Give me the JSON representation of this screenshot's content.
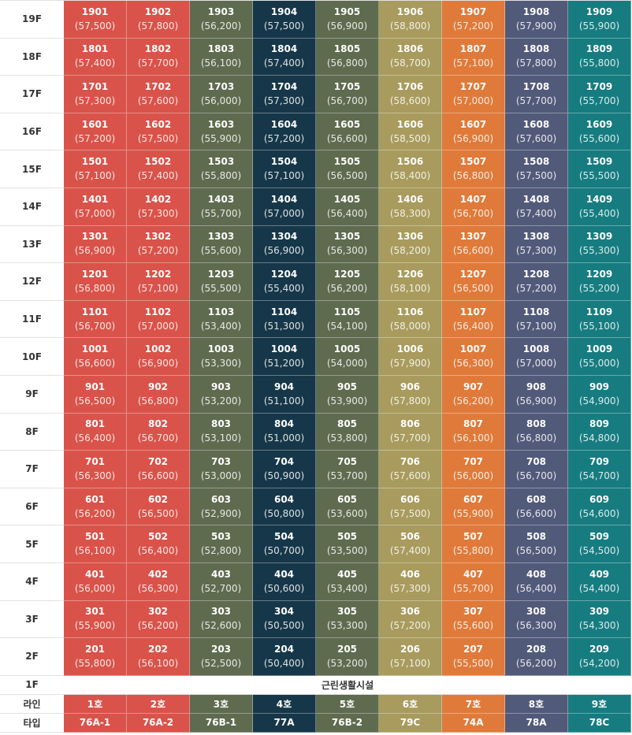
{
  "line_colors": [
    "#d9534a",
    "#d9534a",
    "#5e6b4f",
    "#163749",
    "#5e6b4f",
    "#a89b5d",
    "#e07a3a",
    "#525a7a",
    "#167c80"
  ],
  "floors": [
    {
      "label": "19F",
      "units": [
        [
          "1901",
          "(57,500)"
        ],
        [
          "1902",
          "(57,800)"
        ],
        [
          "1903",
          "(56,200)"
        ],
        [
          "1904",
          "(57,500)"
        ],
        [
          "1905",
          "(56,900)"
        ],
        [
          "1906",
          "(58,800)"
        ],
        [
          "1907",
          "(57,200)"
        ],
        [
          "1908",
          "(57,900)"
        ],
        [
          "1909",
          "(55,900)"
        ]
      ]
    },
    {
      "label": "18F",
      "units": [
        [
          "1801",
          "(57,400)"
        ],
        [
          "1802",
          "(57,700)"
        ],
        [
          "1803",
          "(56,100)"
        ],
        [
          "1804",
          "(57,400)"
        ],
        [
          "1805",
          "(56,800)"
        ],
        [
          "1806",
          "(58,700)"
        ],
        [
          "1807",
          "(57,100)"
        ],
        [
          "1808",
          "(57,800)"
        ],
        [
          "1809",
          "(55,800)"
        ]
      ]
    },
    {
      "label": "17F",
      "units": [
        [
          "1701",
          "(57,300)"
        ],
        [
          "1702",
          "(57,600)"
        ],
        [
          "1703",
          "(56,000)"
        ],
        [
          "1704",
          "(57,300)"
        ],
        [
          "1705",
          "(56,700)"
        ],
        [
          "1706",
          "(58,600)"
        ],
        [
          "1707",
          "(57,000)"
        ],
        [
          "1708",
          "(57,700)"
        ],
        [
          "1709",
          "(55,700)"
        ]
      ]
    },
    {
      "label": "16F",
      "units": [
        [
          "1601",
          "(57,200)"
        ],
        [
          "1602",
          "(57,500)"
        ],
        [
          "1603",
          "(55,900)"
        ],
        [
          "1604",
          "(57,200)"
        ],
        [
          "1605",
          "(56,600)"
        ],
        [
          "1606",
          "(58,500)"
        ],
        [
          "1607",
          "(56,900)"
        ],
        [
          "1608",
          "(57,600)"
        ],
        [
          "1609",
          "(55,600)"
        ]
      ]
    },
    {
      "label": "15F",
      "units": [
        [
          "1501",
          "(57,100)"
        ],
        [
          "1502",
          "(57,400)"
        ],
        [
          "1503",
          "(55,800)"
        ],
        [
          "1504",
          "(57,100)"
        ],
        [
          "1505",
          "(56,500)"
        ],
        [
          "1506",
          "(58,400)"
        ],
        [
          "1507",
          "(56,800)"
        ],
        [
          "1508",
          "(57,500)"
        ],
        [
          "1509",
          "(55,500)"
        ]
      ]
    },
    {
      "label": "14F",
      "units": [
        [
          "1401",
          "(57,000)"
        ],
        [
          "1402",
          "(57,300)"
        ],
        [
          "1403",
          "(55,700)"
        ],
        [
          "1404",
          "(57,000)"
        ],
        [
          "1405",
          "(56,400)"
        ],
        [
          "1406",
          "(58,300)"
        ],
        [
          "1407",
          "(56,700)"
        ],
        [
          "1408",
          "(57,400)"
        ],
        [
          "1409",
          "(55,400)"
        ]
      ]
    },
    {
      "label": "13F",
      "units": [
        [
          "1301",
          "(56,900)"
        ],
        [
          "1302",
          "(57,200)"
        ],
        [
          "1303",
          "(55,600)"
        ],
        [
          "1304",
          "(56,900)"
        ],
        [
          "1305",
          "(56,300)"
        ],
        [
          "1306",
          "(58,200)"
        ],
        [
          "1307",
          "(56,600)"
        ],
        [
          "1308",
          "(57,300)"
        ],
        [
          "1309",
          "(55,300)"
        ]
      ]
    },
    {
      "label": "12F",
      "units": [
        [
          "1201",
          "(56,800)"
        ],
        [
          "1202",
          "(57,100)"
        ],
        [
          "1203",
          "(55,500)"
        ],
        [
          "1204",
          "(55,400)"
        ],
        [
          "1205",
          "(56,200)"
        ],
        [
          "1206",
          "(58,100)"
        ],
        [
          "1207",
          "(56,500)"
        ],
        [
          "1208",
          "(57,200)"
        ],
        [
          "1209",
          "(55,200)"
        ]
      ]
    },
    {
      "label": "11F",
      "units": [
        [
          "1101",
          "(56,700)"
        ],
        [
          "1102",
          "(57,000)"
        ],
        [
          "1103",
          "(53,400)"
        ],
        [
          "1104",
          "(51,300)"
        ],
        [
          "1105",
          "(54,100)"
        ],
        [
          "1106",
          "(58,000)"
        ],
        [
          "1107",
          "(56,400)"
        ],
        [
          "1108",
          "(57,100)"
        ],
        [
          "1109",
          "(55,100)"
        ]
      ]
    },
    {
      "label": "10F",
      "units": [
        [
          "1001",
          "(56,600)"
        ],
        [
          "1002",
          "(56,900)"
        ],
        [
          "1003",
          "(53,300)"
        ],
        [
          "1004",
          "(51,200)"
        ],
        [
          "1005",
          "(54,000)"
        ],
        [
          "1006",
          "(57,900)"
        ],
        [
          "1007",
          "(56,300)"
        ],
        [
          "1008",
          "(57,000)"
        ],
        [
          "1009",
          "(55,000)"
        ]
      ]
    },
    {
      "label": "9F",
      "units": [
        [
          "901",
          "(56,500)"
        ],
        [
          "902",
          "(56,800)"
        ],
        [
          "903",
          "(53,200)"
        ],
        [
          "904",
          "(51,100)"
        ],
        [
          "905",
          "(53,900)"
        ],
        [
          "906",
          "(57,800)"
        ],
        [
          "907",
          "(56,200)"
        ],
        [
          "908",
          "(56,900)"
        ],
        [
          "909",
          "(54,900)"
        ]
      ]
    },
    {
      "label": "8F",
      "units": [
        [
          "801",
          "(56,400)"
        ],
        [
          "802",
          "(56,700)"
        ],
        [
          "803",
          "(53,100)"
        ],
        [
          "804",
          "(51,000)"
        ],
        [
          "805",
          "(53,800)"
        ],
        [
          "806",
          "(57,700)"
        ],
        [
          "807",
          "(56,100)"
        ],
        [
          "808",
          "(56,800)"
        ],
        [
          "809",
          "(54,800)"
        ]
      ]
    },
    {
      "label": "7F",
      "units": [
        [
          "701",
          "(56,300)"
        ],
        [
          "702",
          "(56,600)"
        ],
        [
          "703",
          "(53,000)"
        ],
        [
          "704",
          "(50,900)"
        ],
        [
          "705",
          "(53,700)"
        ],
        [
          "706",
          "(57,600)"
        ],
        [
          "707",
          "(56,000)"
        ],
        [
          "708",
          "(56,700)"
        ],
        [
          "709",
          "(54,700)"
        ]
      ]
    },
    {
      "label": "6F",
      "units": [
        [
          "601",
          "(56,200)"
        ],
        [
          "602",
          "(56,500)"
        ],
        [
          "603",
          "(52,900)"
        ],
        [
          "604",
          "(50,800)"
        ],
        [
          "605",
          "(53,600)"
        ],
        [
          "606",
          "(57,500)"
        ],
        [
          "607",
          "(55,900)"
        ],
        [
          "608",
          "(56,600)"
        ],
        [
          "609",
          "(54,600)"
        ]
      ]
    },
    {
      "label": "5F",
      "units": [
        [
          "501",
          "(56,100)"
        ],
        [
          "502",
          "(56,400)"
        ],
        [
          "503",
          "(52,800)"
        ],
        [
          "504",
          "(50,700)"
        ],
        [
          "505",
          "(53,500)"
        ],
        [
          "506",
          "(57,400)"
        ],
        [
          "507",
          "(55,800)"
        ],
        [
          "508",
          "(56,500)"
        ],
        [
          "509",
          "(54,500)"
        ]
      ]
    },
    {
      "label": "4F",
      "units": [
        [
          "401",
          "(56,000)"
        ],
        [
          "402",
          "(56,300)"
        ],
        [
          "403",
          "(52,700)"
        ],
        [
          "404",
          "(50,600)"
        ],
        [
          "405",
          "(53,400)"
        ],
        [
          "406",
          "(57,300)"
        ],
        [
          "407",
          "(55,700)"
        ],
        [
          "408",
          "(56,400)"
        ],
        [
          "409",
          "(54,400)"
        ]
      ]
    },
    {
      "label": "3F",
      "units": [
        [
          "301",
          "(55,900)"
        ],
        [
          "302",
          "(56,200)"
        ],
        [
          "303",
          "(52,600)"
        ],
        [
          "304",
          "(50,500)"
        ],
        [
          "305",
          "(53,300)"
        ],
        [
          "306",
          "(57,200)"
        ],
        [
          "307",
          "(55,600)"
        ],
        [
          "308",
          "(56,300)"
        ],
        [
          "309",
          "(54,300)"
        ]
      ]
    },
    {
      "label": "2F",
      "units": [
        [
          "201",
          "(55,800)"
        ],
        [
          "202",
          "(56,100)"
        ],
        [
          "203",
          "(52,500)"
        ],
        [
          "204",
          "(50,400)"
        ],
        [
          "205",
          "(53,200)"
        ],
        [
          "206",
          "(57,100)"
        ],
        [
          "207",
          "(55,500)"
        ],
        [
          "208",
          "(56,200)"
        ],
        [
          "209",
          "(54,200)"
        ]
      ]
    }
  ],
  "ground": {
    "label": "1F",
    "facility": "근린생활시설"
  },
  "lines": {
    "label": "라인",
    "values": [
      "1호",
      "2호",
      "3호",
      "4호",
      "5호",
      "6호",
      "7호",
      "8호",
      "9호"
    ]
  },
  "types": {
    "label": "타입",
    "values": [
      "76A-1",
      "76A-2",
      "76B-1",
      "77A",
      "76B-2",
      "79C",
      "74A",
      "78A",
      "78C"
    ]
  }
}
